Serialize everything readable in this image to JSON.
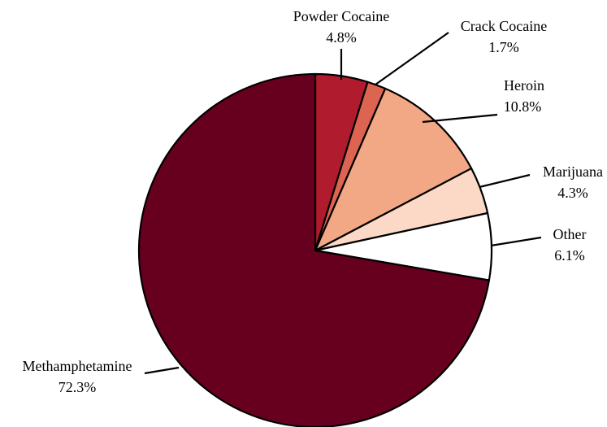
{
  "chart_data": {
    "type": "pie",
    "title": "",
    "slices": [
      {
        "name": "Powder Cocaine",
        "value": 4.8,
        "value_label": "4.8%",
        "color": "#b01c2e"
      },
      {
        "name": "Crack Cocaine",
        "value": 1.7,
        "value_label": "1.7%",
        "color": "#dc6450"
      },
      {
        "name": "Heroin",
        "value": 10.8,
        "value_label": "10.8%",
        "color": "#f2a785"
      },
      {
        "name": "Marijuana",
        "value": 4.3,
        "value_label": "4.3%",
        "color": "#fcd9c7"
      },
      {
        "name": "Other",
        "value": 6.1,
        "value_label": "6.1%",
        "color": "#ffffff"
      },
      {
        "name": "Methamphetamine",
        "value": 72.3,
        "value_label": "72.3%",
        "color": "#67001f"
      }
    ],
    "start_angle": "12 o'clock",
    "direction": "clockwise",
    "legend": "none"
  }
}
